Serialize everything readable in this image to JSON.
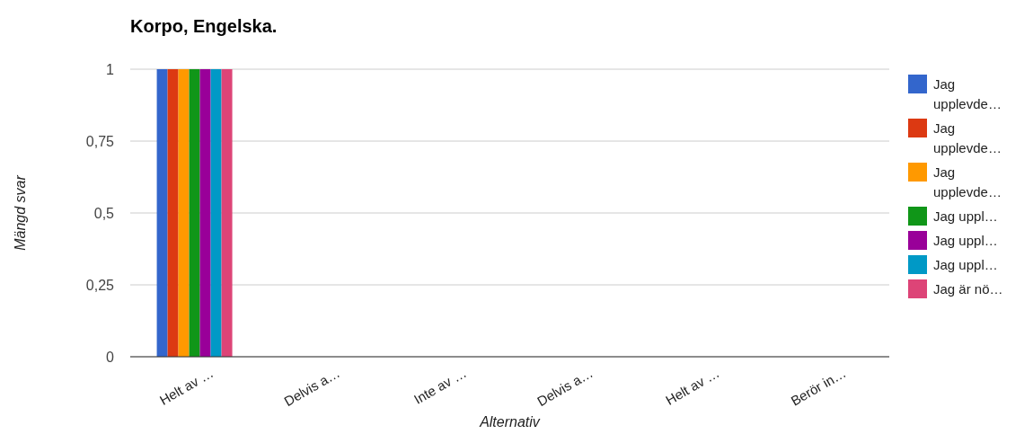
{
  "chart_data": {
    "type": "bar",
    "title": "Korpo, Engelska.",
    "xlabel": "Alternativ",
    "ylabel": "Mängd svar",
    "categories": [
      "Helt av …",
      "Delvis a…",
      "Inte av …",
      "Delvis a…",
      "Helt av …",
      "Berör in…"
    ],
    "series": [
      {
        "name": "Jag upplevde…",
        "color": "#3366cc",
        "values": [
          1,
          0,
          0,
          0,
          0,
          0
        ]
      },
      {
        "name": "Jag upplevde…",
        "color": "#dc3912",
        "values": [
          1,
          0,
          0,
          0,
          0,
          0
        ]
      },
      {
        "name": "Jag upplevde…",
        "color": "#ff9900",
        "values": [
          1,
          0,
          0,
          0,
          0,
          0
        ]
      },
      {
        "name": "Jag uppl…",
        "color": "#109618",
        "values": [
          1,
          0,
          0,
          0,
          0,
          0
        ]
      },
      {
        "name": "Jag uppl…",
        "color": "#990099",
        "values": [
          1,
          0,
          0,
          0,
          0,
          0
        ]
      },
      {
        "name": "Jag uppl…",
        "color": "#0099c6",
        "values": [
          1,
          0,
          0,
          0,
          0,
          0
        ]
      },
      {
        "name": "Jag är nö…",
        "color": "#dd4477",
        "values": [
          1,
          0,
          0,
          0,
          0,
          0
        ]
      }
    ],
    "ylim": [
      0,
      1
    ],
    "yticks": [
      0,
      {
        "value": 0.25,
        "label": "0,25"
      },
      {
        "value": 0.5,
        "label": "0,5"
      },
      {
        "value": 0.75,
        "label": "0,75"
      },
      1
    ],
    "grid": "y",
    "legend": "right"
  }
}
